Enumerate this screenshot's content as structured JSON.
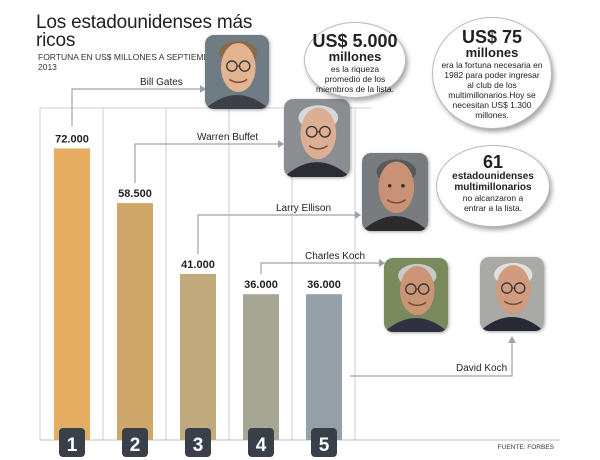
{
  "title": "Los estadounidenses más ricos",
  "subtitle": "Fortuna en US$ millones a septiembre de 2013",
  "source": "FUENTE: FORBES",
  "chart_data": {
    "type": "bar",
    "categories": [
      "1",
      "2",
      "3",
      "4",
      "5"
    ],
    "values": [
      72000,
      58500,
      41000,
      36000,
      36000
    ],
    "value_labels": [
      "72.000",
      "58.500",
      "41.000",
      "36.000",
      "36.000"
    ],
    "people": [
      "Bill Gates",
      "Warren Buffet",
      "Larry Ellison",
      "Charles Koch",
      "David Koch"
    ],
    "colors": [
      "#e4ad62",
      "#cfa76a",
      "#c1aa7e",
      "#a7a694",
      "#95a0a9"
    ],
    "ylim": [
      0,
      80000
    ],
    "grid": false
  },
  "callouts": [
    {
      "big": "US$ 5.000",
      "mid": "millones",
      "text": "es la riqueza promedio de los miembros de la lista."
    },
    {
      "big": "US$ 75",
      "mid": "millones",
      "text": "era la fortuna necesaria en 1982 para poder ingresar al club de los multimillonarios.Hoy se necesitan US$ 1.300 millones."
    },
    {
      "big": "61",
      "mid": "estadounidenses multimillonarios",
      "text": "no alcanzaron a entrar a la lista."
    }
  ],
  "photos": [
    {
      "name": "bill-gates-photo",
      "skin": "#e2b48f",
      "hair": "#8a6a4a",
      "bg": "#6f7c84",
      "suit": "#3c3f45",
      "glasses": true
    },
    {
      "name": "warren-buffet-photo",
      "skin": "#dcae94",
      "hair": "#d8d8d8",
      "bg": "#8a8e92",
      "suit": "#2a2d35",
      "glasses": true
    },
    {
      "name": "larry-ellison-photo",
      "skin": "#c99275",
      "hair": "#5a5a5a",
      "bg": "#787c7f",
      "suit": "#2b2b2b",
      "glasses": false
    },
    {
      "name": "charles-koch-photo",
      "skin": "#c99574",
      "hair": "#c9c9c9",
      "bg": "#7a8a5d",
      "suit": "#2e3240",
      "glasses": true
    },
    {
      "name": "david-koch-photo",
      "skin": "#d09b7f",
      "hair": "#e0e0e0",
      "bg": "#a9aaa5",
      "suit": "#262a33",
      "glasses": true
    }
  ]
}
